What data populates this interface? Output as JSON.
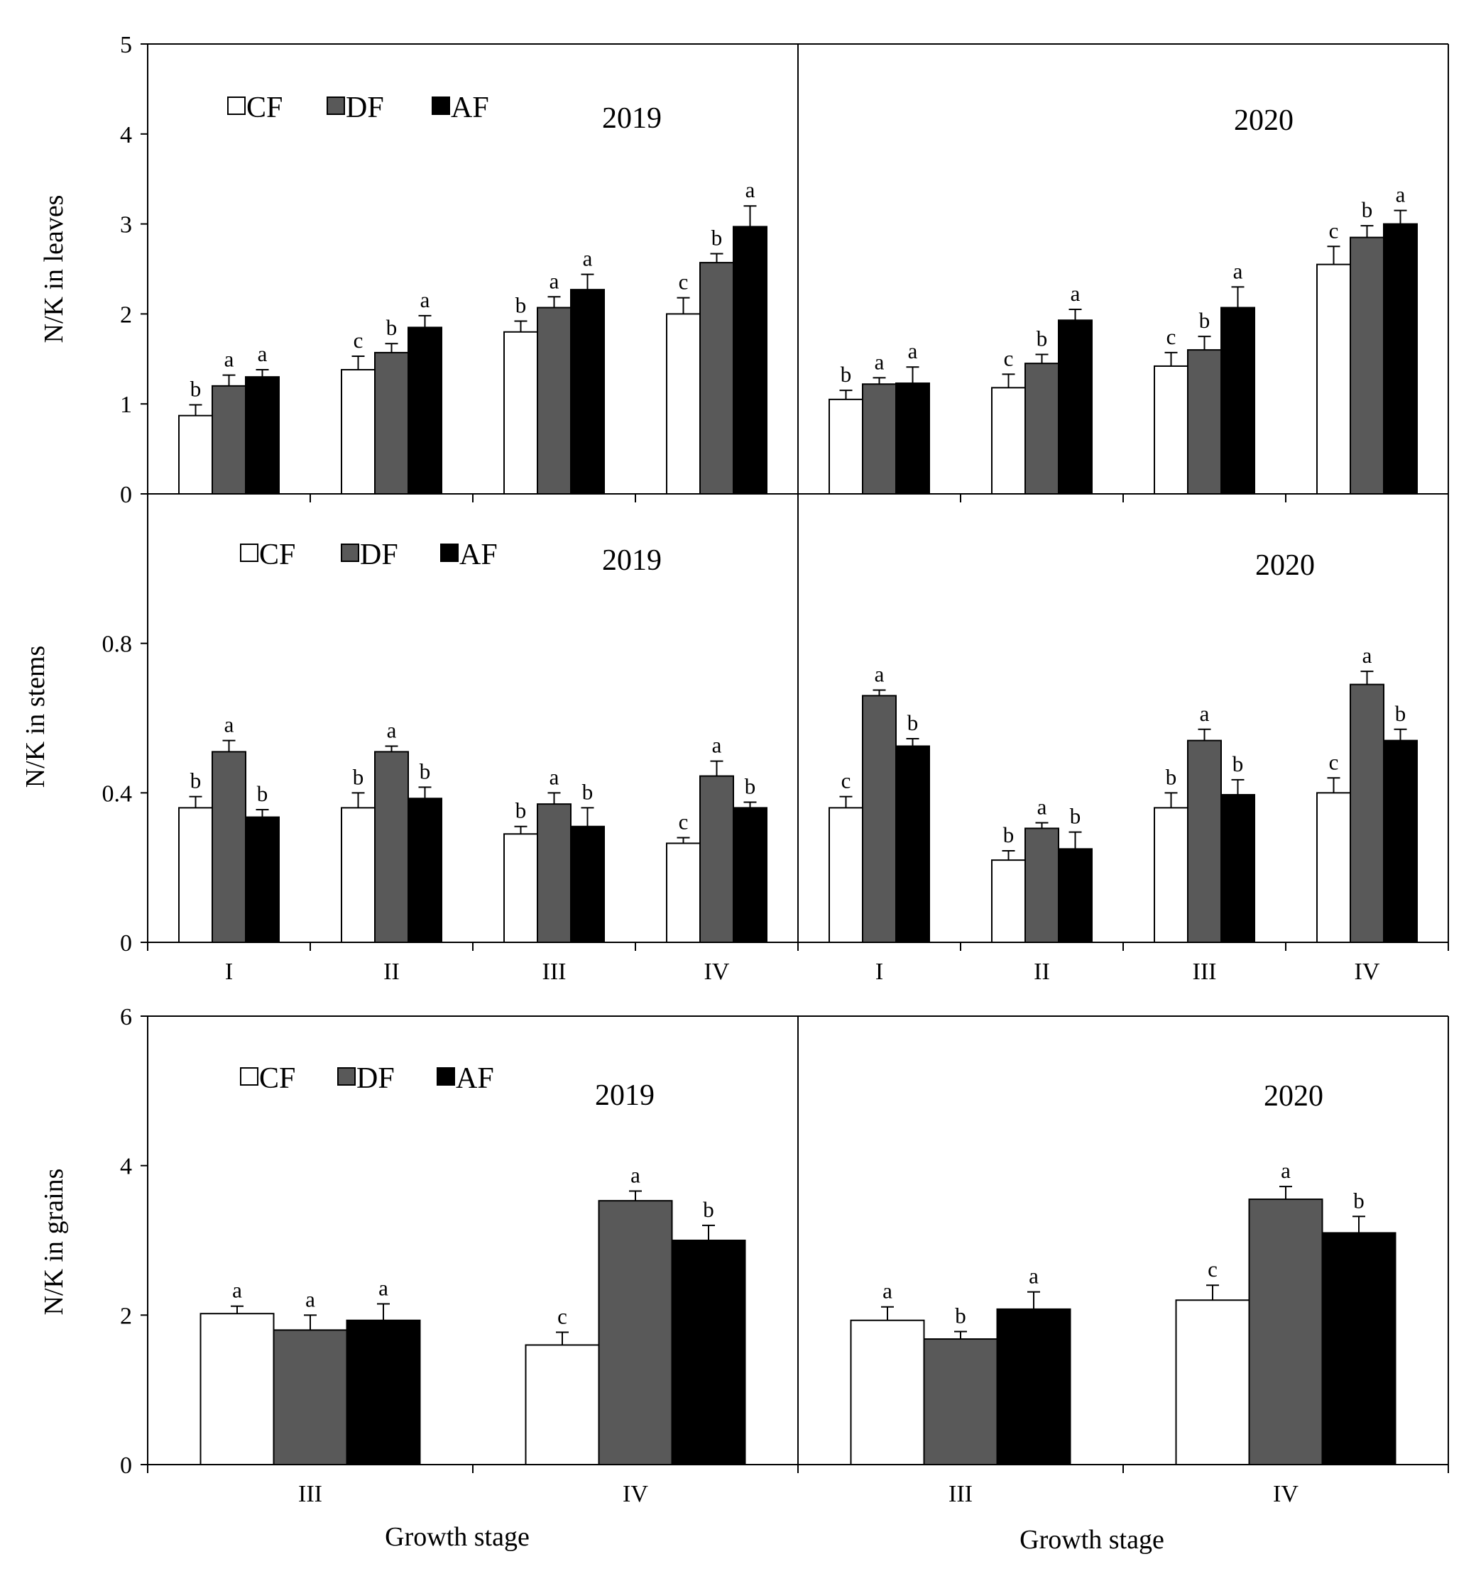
{
  "colors": {
    "CF": "#ffffff",
    "DF": "#595959",
    "AF": "#000000",
    "axis": "#000000"
  },
  "chart_data": [
    {
      "type": "bar",
      "panel": "leaves",
      "ylabel": "N/K in leaves",
      "yticks": [
        "0",
        "1",
        "2",
        "3",
        "4",
        "5"
      ],
      "ylim": [
        0,
        5
      ],
      "legend": [
        "CF",
        "DF",
        "AF"
      ],
      "years": [
        {
          "year": "2019",
          "categories": [
            "I",
            "II",
            "III",
            "IV"
          ],
          "series": [
            {
              "name": "CF",
              "values": [
                0.87,
                1.38,
                1.8,
                2.0
              ],
              "errors": [
                0.12,
                0.15,
                0.12,
                0.18
              ],
              "letters": [
                "b",
                "c",
                "b",
                "c"
              ]
            },
            {
              "name": "DF",
              "values": [
                1.2,
                1.57,
                2.07,
                2.57
              ],
              "errors": [
                0.12,
                0.1,
                0.12,
                0.1
              ],
              "letters": [
                "a",
                "b",
                "a",
                "b"
              ]
            },
            {
              "name": "AF",
              "values": [
                1.3,
                1.85,
                2.27,
                2.97
              ],
              "errors": [
                0.08,
                0.13,
                0.17,
                0.23
              ],
              "letters": [
                "a",
                "a",
                "a",
                "a"
              ]
            }
          ]
        },
        {
          "year": "2020",
          "categories": [
            "I",
            "II",
            "III",
            "IV"
          ],
          "series": [
            {
              "name": "CF",
              "values": [
                1.05,
                1.18,
                1.42,
                2.55
              ],
              "errors": [
                0.1,
                0.15,
                0.15,
                0.2
              ],
              "letters": [
                "b",
                "c",
                "c",
                "c"
              ]
            },
            {
              "name": "DF",
              "values": [
                1.22,
                1.45,
                1.6,
                2.85
              ],
              "errors": [
                0.07,
                0.1,
                0.15,
                0.13
              ],
              "letters": [
                "a",
                "b",
                "b",
                "b"
              ]
            },
            {
              "name": "AF",
              "values": [
                1.23,
                1.93,
                2.07,
                3.0
              ],
              "errors": [
                0.18,
                0.12,
                0.23,
                0.15
              ],
              "letters": [
                "a",
                "a",
                "a",
                "a"
              ]
            }
          ]
        }
      ]
    },
    {
      "type": "bar",
      "panel": "stems",
      "ylabel": "N/K in stems",
      "yticks": [
        "0",
        "0.4",
        "0.8"
      ],
      "ylim": [
        0,
        1.2
      ],
      "legend": [
        "CF",
        "DF",
        "AF"
      ],
      "years": [
        {
          "year": "2019",
          "categories": [
            "I",
            "II",
            "III",
            "IV"
          ],
          "series": [
            {
              "name": "CF",
              "values": [
                0.36,
                0.36,
                0.29,
                0.265
              ],
              "errors": [
                0.03,
                0.04,
                0.02,
                0.015
              ],
              "letters": [
                "b",
                "b",
                "b",
                "c"
              ]
            },
            {
              "name": "DF",
              "values": [
                0.51,
                0.51,
                0.37,
                0.445
              ],
              "errors": [
                0.03,
                0.015,
                0.03,
                0.04
              ],
              "letters": [
                "a",
                "a",
                "a",
                "a"
              ]
            },
            {
              "name": "AF",
              "values": [
                0.335,
                0.385,
                0.31,
                0.36
              ],
              "errors": [
                0.02,
                0.03,
                0.05,
                0.015
              ],
              "letters": [
                "b",
                "b",
                "b",
                "b"
              ]
            }
          ]
        },
        {
          "year": "2020",
          "categories": [
            "I",
            "II",
            "III",
            "IV"
          ],
          "series": [
            {
              "name": "CF",
              "values": [
                0.36,
                0.22,
                0.36,
                0.4
              ],
              "errors": [
                0.03,
                0.025,
                0.04,
                0.04
              ],
              "letters": [
                "c",
                "b",
                "b",
                "c"
              ]
            },
            {
              "name": "DF",
              "values": [
                0.66,
                0.305,
                0.54,
                0.69
              ],
              "errors": [
                0.015,
                0.015,
                0.03,
                0.035
              ],
              "letters": [
                "a",
                "a",
                "a",
                "a"
              ]
            },
            {
              "name": "AF",
              "values": [
                0.525,
                0.25,
                0.395,
                0.54
              ],
              "errors": [
                0.02,
                0.045,
                0.04,
                0.03
              ],
              "letters": [
                "b",
                "b",
                "b",
                "b"
              ]
            }
          ]
        }
      ],
      "xcategories": [
        "I",
        "II",
        "III",
        "IV"
      ]
    },
    {
      "type": "bar",
      "panel": "grains",
      "ylabel": "N/K in grains",
      "yticks": [
        "0",
        "2",
        "4",
        "6"
      ],
      "ylim": [
        0,
        6
      ],
      "legend": [
        "CF",
        "DF",
        "AF"
      ],
      "xlabel": "Growth stage",
      "years": [
        {
          "year": "2019",
          "categories": [
            "III",
            "IV"
          ],
          "series": [
            {
              "name": "CF",
              "values": [
                2.02,
                1.6
              ],
              "errors": [
                0.1,
                0.17
              ],
              "letters": [
                "a",
                "c"
              ]
            },
            {
              "name": "DF",
              "values": [
                1.8,
                3.53
              ],
              "errors": [
                0.2,
                0.13
              ],
              "letters": [
                "a",
                "a"
              ]
            },
            {
              "name": "AF",
              "values": [
                1.93,
                3.0
              ],
              "errors": [
                0.22,
                0.2
              ],
              "letters": [
                "a",
                "b"
              ]
            }
          ]
        },
        {
          "year": "2020",
          "categories": [
            "III",
            "IV"
          ],
          "series": [
            {
              "name": "CF",
              "values": [
                1.93,
                2.2
              ],
              "errors": [
                0.18,
                0.2
              ],
              "letters": [
                "a",
                "c"
              ]
            },
            {
              "name": "DF",
              "values": [
                1.68,
                3.55
              ],
              "errors": [
                0.1,
                0.17
              ],
              "letters": [
                "b",
                "a"
              ]
            },
            {
              "name": "AF",
              "values": [
                2.08,
                3.1
              ],
              "errors": [
                0.23,
                0.22
              ],
              "letters": [
                "a",
                "b"
              ]
            }
          ]
        }
      ]
    }
  ]
}
